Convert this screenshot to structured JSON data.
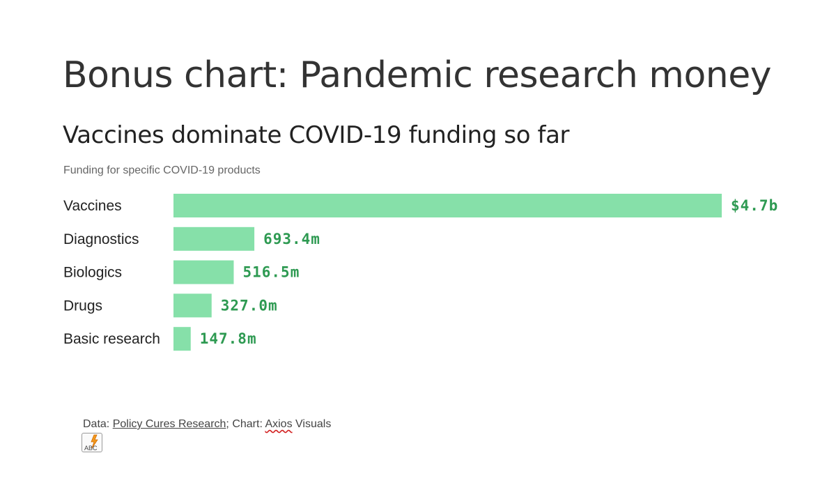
{
  "slide": {
    "title": "Bonus chart: Pandemic research money"
  },
  "chart_data": {
    "type": "bar",
    "orientation": "horizontal",
    "title": "Vaccines dominate COVID-19 funding so far",
    "subtitle": "Funding for specific COVID-19 products",
    "categories": [
      "Vaccines",
      "Diagnostics",
      "Biologics",
      "Drugs",
      "Basic research"
    ],
    "values": [
      4700,
      693.4,
      516.5,
      327.0,
      147.8
    ],
    "value_unit": "millions USD",
    "data_labels": [
      "$4.7b",
      "693.4m",
      "516.5m",
      "327.0m",
      "147.8m"
    ],
    "xlim": [
      0,
      4700
    ],
    "grid": false,
    "legend": "none",
    "colors": {
      "bar": "#86e0a9",
      "value_label": "#2e9a52"
    }
  },
  "footer": {
    "data_prefix": "Data: ",
    "data_source": "Policy Cures Research",
    "separator": "; Chart: ",
    "chart_brand": "Axios",
    "chart_suffix": " Visuals"
  },
  "icons": {
    "spellcheck": "spellcheck-abc-icon",
    "spellcheck_text": "ABC"
  }
}
